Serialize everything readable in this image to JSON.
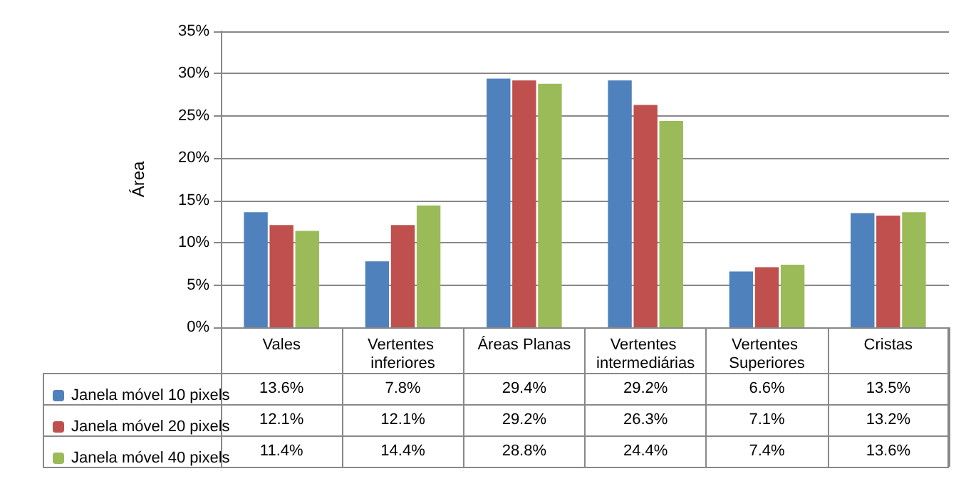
{
  "chart_data": {
    "type": "bar",
    "ylabel": "Área",
    "categories": [
      "Vales",
      "Vertentes inferiores",
      "Áreas Planas",
      "Vertentes intermediárias",
      "Vertentes Superiores",
      "Cristas"
    ],
    "series": [
      {
        "name": "Janela móvel 10 pixels",
        "color": "#4f81bd",
        "values": [
          13.6,
          7.8,
          29.4,
          29.2,
          6.6,
          13.5
        ],
        "value_labels": [
          "13.6%",
          "7.8%",
          "29.4%",
          "29.2%",
          "6.6%",
          "13.5%"
        ]
      },
      {
        "name": "Janela móvel 20 pixels",
        "color": "#c0504d",
        "values": [
          12.1,
          12.1,
          29.2,
          26.3,
          7.1,
          13.2
        ],
        "value_labels": [
          "12.1%",
          "12.1%",
          "29.2%",
          "26.3%",
          "7.1%",
          "13.2%"
        ]
      },
      {
        "name": "Janela móvel 40 pixels",
        "color": "#9bbb59",
        "values": [
          11.4,
          14.4,
          28.8,
          24.4,
          7.4,
          13.6
        ],
        "value_labels": [
          "11.4%",
          "14.4%",
          "28.8%",
          "24.4%",
          "7.4%",
          "13.6%"
        ]
      }
    ],
    "ylim": [
      0,
      35
    ],
    "yticks": [
      {
        "value": 0,
        "label": "0%"
      },
      {
        "value": 5,
        "label": "5%"
      },
      {
        "value": 10,
        "label": "10%"
      },
      {
        "value": 15,
        "label": "15%"
      },
      {
        "value": 20,
        "label": "20%"
      },
      {
        "value": 25,
        "label": "25%"
      },
      {
        "value": 30,
        "label": "30%"
      },
      {
        "value": 35,
        "label": "35%"
      }
    ],
    "grid": "y",
    "legend": "bottom left"
  }
}
